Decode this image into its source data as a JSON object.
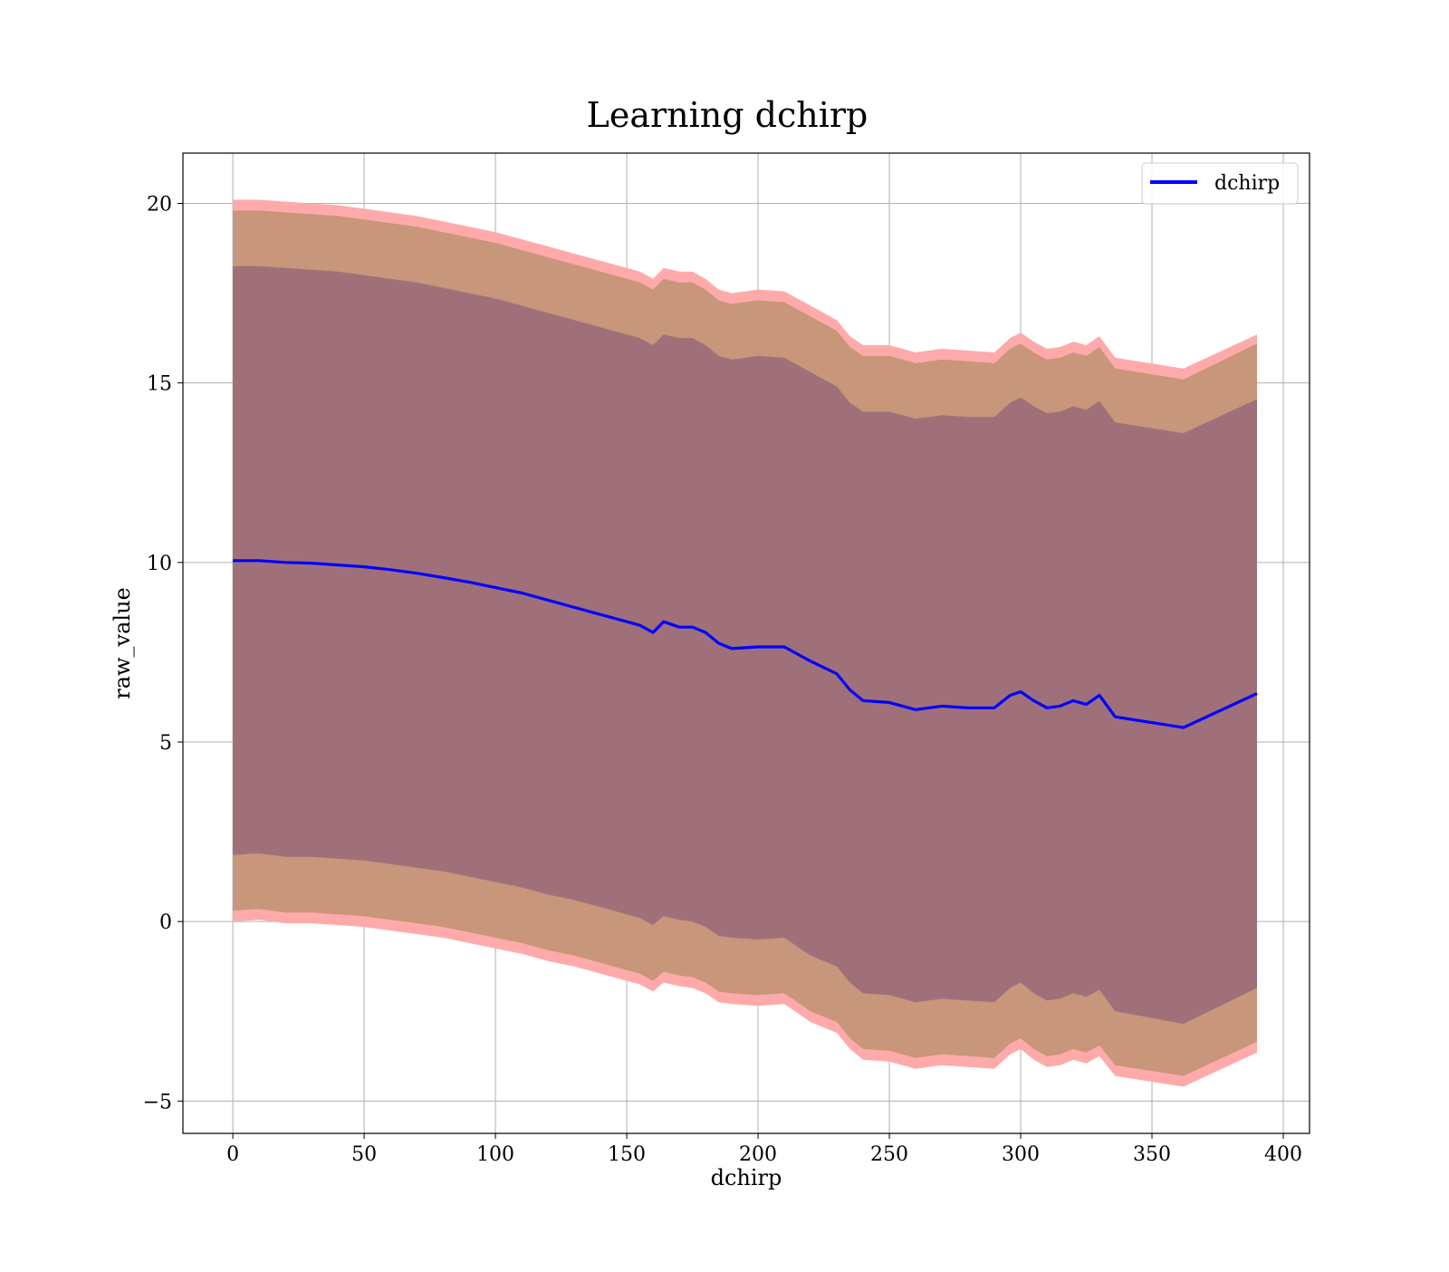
{
  "chart_data": {
    "type": "line",
    "title": "Learning dchirp",
    "xlabel": "dchirp",
    "ylabel": "raw_value",
    "xlim": [
      -19,
      410
    ],
    "ylim": [
      -5.9,
      21.4
    ],
    "xticks": [
      0,
      50,
      100,
      150,
      200,
      250,
      300,
      350,
      400
    ],
    "xtick_labels": [
      "0",
      "50",
      "100",
      "150",
      "200",
      "250",
      "300",
      "350",
      "400"
    ],
    "yticks": [
      -5,
      0,
      5,
      10,
      15,
      20
    ],
    "ytick_labels": [
      "−5",
      "0",
      "5",
      "10",
      "15",
      "20"
    ],
    "grid": true,
    "legend_position": "top-right",
    "colors": {
      "line": "#0000ff",
      "band_outer": "#ffaaaa",
      "band_middle": "#c8967a",
      "band_inner": "#a0707a",
      "grid": "#b0b0b0"
    },
    "series": [
      {
        "name": "dchirp",
        "x": [
          0,
          10,
          20,
          30,
          40,
          50,
          60,
          70,
          80,
          90,
          100,
          110,
          120,
          130,
          140,
          150,
          155,
          160,
          164,
          170,
          175,
          180,
          185,
          190,
          200,
          210,
          220,
          230,
          235,
          240,
          250,
          260,
          270,
          280,
          290,
          296,
          300,
          305,
          310,
          315,
          320,
          325,
          330,
          336,
          362,
          390
        ],
        "y": [
          10.05,
          10.05,
          10.0,
          9.98,
          9.93,
          9.88,
          9.8,
          9.7,
          9.58,
          9.45,
          9.3,
          9.15,
          8.95,
          8.75,
          8.55,
          8.35,
          8.25,
          8.05,
          8.35,
          8.2,
          8.2,
          8.05,
          7.75,
          7.6,
          7.65,
          7.65,
          7.25,
          6.9,
          6.45,
          6.15,
          6.1,
          5.9,
          6.0,
          5.95,
          5.95,
          6.3,
          6.4,
          6.15,
          5.95,
          6.0,
          6.15,
          6.05,
          6.3,
          5.7,
          5.4,
          6.35
        ]
      }
    ],
    "bands": [
      {
        "level": "outer",
        "upper": [
          20.1,
          20.1,
          20.05,
          20.0,
          19.95,
          19.85,
          19.75,
          19.65,
          19.5,
          19.35,
          19.2,
          19.0,
          18.8,
          18.6,
          18.4,
          18.2,
          18.1,
          17.9,
          18.2,
          18.1,
          18.1,
          17.9,
          17.6,
          17.5,
          17.6,
          17.55,
          17.15,
          16.75,
          16.3,
          16.05,
          16.05,
          15.85,
          15.95,
          15.9,
          15.85,
          16.25,
          16.4,
          16.15,
          15.95,
          16.0,
          16.15,
          16.05,
          16.3,
          15.7,
          15.4,
          16.35
        ],
        "lower": [
          0.0,
          0.05,
          -0.05,
          -0.05,
          -0.1,
          -0.15,
          -0.25,
          -0.35,
          -0.45,
          -0.6,
          -0.75,
          -0.9,
          -1.1,
          -1.25,
          -1.45,
          -1.65,
          -1.75,
          -1.95,
          -1.7,
          -1.8,
          -1.85,
          -2.0,
          -2.25,
          -2.3,
          -2.35,
          -2.3,
          -2.8,
          -3.1,
          -3.55,
          -3.85,
          -3.9,
          -4.1,
          -4.0,
          -4.05,
          -4.1,
          -3.7,
          -3.55,
          -3.85,
          -4.05,
          -4.0,
          -3.85,
          -3.95,
          -3.75,
          -4.3,
          -4.6,
          -3.65
        ]
      },
      {
        "level": "middle",
        "upper": [
          19.8,
          19.8,
          19.75,
          19.7,
          19.65,
          19.55,
          19.45,
          19.35,
          19.2,
          19.05,
          18.9,
          18.7,
          18.5,
          18.3,
          18.1,
          17.9,
          17.8,
          17.6,
          17.9,
          17.8,
          17.8,
          17.6,
          17.3,
          17.2,
          17.3,
          17.25,
          16.85,
          16.45,
          16.0,
          15.75,
          15.75,
          15.55,
          15.65,
          15.6,
          15.55,
          15.95,
          16.1,
          15.85,
          15.65,
          15.7,
          15.85,
          15.75,
          16.0,
          15.4,
          15.1,
          16.1
        ],
        "lower": [
          0.3,
          0.35,
          0.25,
          0.25,
          0.2,
          0.15,
          0.05,
          -0.05,
          -0.15,
          -0.3,
          -0.45,
          -0.6,
          -0.8,
          -0.95,
          -1.15,
          -1.35,
          -1.45,
          -1.65,
          -1.4,
          -1.5,
          -1.55,
          -1.7,
          -1.95,
          -2.0,
          -2.05,
          -2.0,
          -2.5,
          -2.8,
          -3.25,
          -3.55,
          -3.6,
          -3.8,
          -3.7,
          -3.75,
          -3.8,
          -3.4,
          -3.25,
          -3.55,
          -3.75,
          -3.7,
          -3.55,
          -3.65,
          -3.45,
          -4.0,
          -4.3,
          -3.35
        ]
      },
      {
        "level": "inner",
        "upper": [
          18.25,
          18.25,
          18.2,
          18.15,
          18.1,
          18.0,
          17.9,
          17.8,
          17.65,
          17.5,
          17.35,
          17.15,
          16.95,
          16.75,
          16.55,
          16.35,
          16.25,
          16.05,
          16.35,
          16.25,
          16.25,
          16.05,
          15.75,
          15.65,
          15.75,
          15.7,
          15.3,
          14.9,
          14.45,
          14.2,
          14.2,
          14.0,
          14.1,
          14.05,
          14.05,
          14.45,
          14.6,
          14.35,
          14.15,
          14.2,
          14.35,
          14.25,
          14.5,
          13.9,
          13.6,
          14.55
        ],
        "lower": [
          1.85,
          1.9,
          1.8,
          1.8,
          1.75,
          1.7,
          1.6,
          1.5,
          1.4,
          1.25,
          1.1,
          0.95,
          0.75,
          0.6,
          0.4,
          0.2,
          0.1,
          -0.1,
          0.15,
          0.05,
          0.0,
          -0.15,
          -0.4,
          -0.45,
          -0.5,
          -0.45,
          -0.95,
          -1.25,
          -1.7,
          -2.0,
          -2.05,
          -2.25,
          -2.15,
          -2.2,
          -2.25,
          -1.85,
          -1.7,
          -2.0,
          -2.2,
          -2.15,
          -2.0,
          -2.1,
          -1.9,
          -2.5,
          -2.85,
          -1.85
        ]
      }
    ]
  }
}
